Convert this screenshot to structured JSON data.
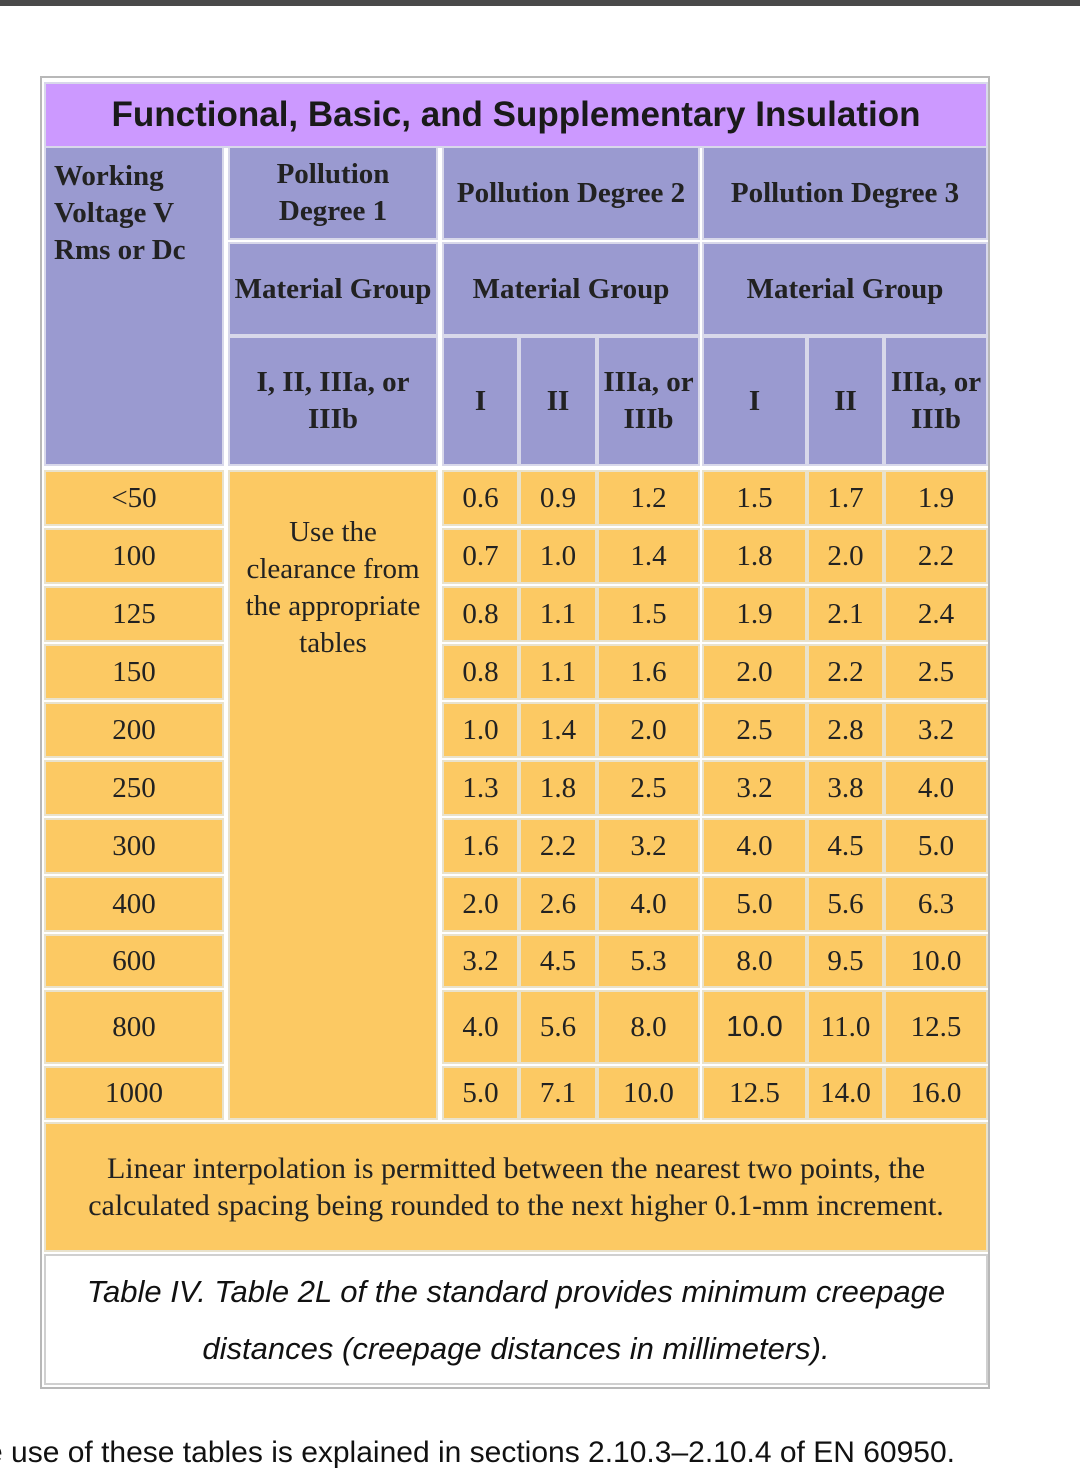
{
  "title": "Functional, Basic, and Supplementary Insulation",
  "headers": {
    "working_voltage": "Working Voltage V Rms or Dc",
    "pollution_degrees": [
      "Pollution Degree 1",
      "Pollution Degree 2",
      "Pollution Degree 3"
    ],
    "material_group": "Material Group",
    "pd1_material": "I, II, IIIa, or IIIb",
    "subgroups": [
      "I",
      "II",
      "IIIa, or IIIb",
      "I",
      "II",
      "IIIa, or IIIb"
    ]
  },
  "rows": [
    {
      "voltage": "<50",
      "values": [
        "0.6",
        "0.9",
        "1.2",
        "1.5",
        "1.7",
        "1.9"
      ]
    },
    {
      "voltage": "100",
      "values": [
        "0.7",
        "1.0",
        "1.4",
        "1.8",
        "2.0",
        "2.2"
      ]
    },
    {
      "voltage": "125",
      "values": [
        "0.8",
        "1.1",
        "1.5",
        "1.9",
        "2.1",
        "2.4"
      ]
    },
    {
      "voltage": "150",
      "values": [
        "0.8",
        "1.1",
        "1.6",
        "2.0",
        "2.2",
        "2.5"
      ]
    },
    {
      "voltage": "200",
      "values": [
        "1.0",
        "1.4",
        "2.0",
        "2.5",
        "2.8",
        "3.2"
      ]
    },
    {
      "voltage": "250",
      "values": [
        "1.3",
        "1.8",
        "2.5",
        "3.2",
        "3.8",
        "4.0"
      ]
    },
    {
      "voltage": "300",
      "values": [
        "1.6",
        "2.2",
        "3.2",
        "4.0",
        "4.5",
        "5.0"
      ]
    },
    {
      "voltage": "400",
      "values": [
        "2.0",
        "2.6",
        "4.0",
        "5.0",
        "5.6",
        "6.3"
      ]
    },
    {
      "voltage": "600",
      "values": [
        "3.2",
        "4.5",
        "5.3",
        "8.0",
        "9.5",
        "10.0"
      ]
    },
    {
      "voltage": "800",
      "values": [
        "4.0",
        "5.6",
        "8.0",
        "10.0",
        "11.0",
        "12.5"
      ]
    },
    {
      "voltage": "1000",
      "values": [
        "5.0",
        "7.1",
        "10.0",
        "12.5",
        "14.0",
        "16.0"
      ]
    }
  ],
  "pd1_usage_note": "Use the clearance from the appropriate tables",
  "interpolation_note": "Linear interpolation is permitted between the nearest two points, the calculated spacing being rounded to the next higher 0.1-mm increment.",
  "caption": "Table IV. Table 2L of the standard provides minimum creepage distances (creepage distances in millimeters).",
  "footer_text": "e use of these tables is explained in sections 2.10.3–2.10.4 of EN 60950.",
  "colors": {
    "title_bg": "#cc99ff",
    "header_bg": "#9a9ad0",
    "data_bg": "#fcc963",
    "cell_border": "#e9e2cc"
  }
}
